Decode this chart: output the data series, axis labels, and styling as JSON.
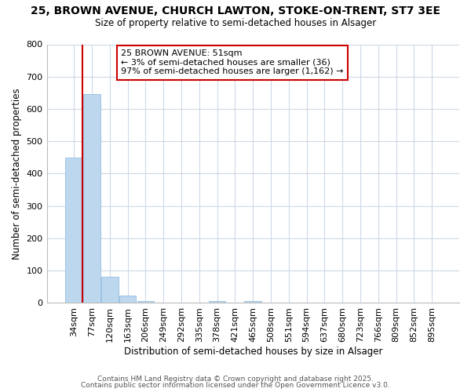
{
  "title1": "25, BROWN AVENUE, CHURCH LAWTON, STOKE-ON-TRENT, ST7 3EE",
  "title2": "Size of property relative to semi-detached houses in Alsager",
  "xlabel": "Distribution of semi-detached houses by size in Alsager",
  "ylabel": "Number of semi-detached properties",
  "bar_labels": [
    "34sqm",
    "77sqm",
    "120sqm",
    "163sqm",
    "206sqm",
    "249sqm",
    "292sqm",
    "335sqm",
    "378sqm",
    "421sqm",
    "465sqm",
    "508sqm",
    "551sqm",
    "594sqm",
    "637sqm",
    "680sqm",
    "723sqm",
    "766sqm",
    "809sqm",
    "852sqm",
    "895sqm"
  ],
  "bar_values": [
    450,
    645,
    80,
    22,
    5,
    0,
    0,
    0,
    6,
    0,
    5,
    0,
    0,
    0,
    0,
    0,
    0,
    0,
    0,
    0,
    0
  ],
  "bar_color": "#bdd7ee",
  "bar_edge_color": "#9dc3e6",
  "ylim": [
    0,
    800
  ],
  "yticks": [
    0,
    100,
    200,
    300,
    400,
    500,
    600,
    700,
    800
  ],
  "annotation_line1": "25 BROWN AVENUE: 51sqm",
  "annotation_line2": "← 3% of semi-detached houses are smaller (36)",
  "annotation_line3": "97% of semi-detached houses are larger (1,162) →",
  "box_color": "#ffffff",
  "box_edge_color": "#cc0000",
  "red_line_color": "#cc0000",
  "footer1": "Contains HM Land Registry data © Crown copyright and database right 2025.",
  "footer2": "Contains public sector information licensed under the Open Government Licence v3.0.",
  "bg_color": "#ffffff",
  "grid_color": "#cdd9e8"
}
